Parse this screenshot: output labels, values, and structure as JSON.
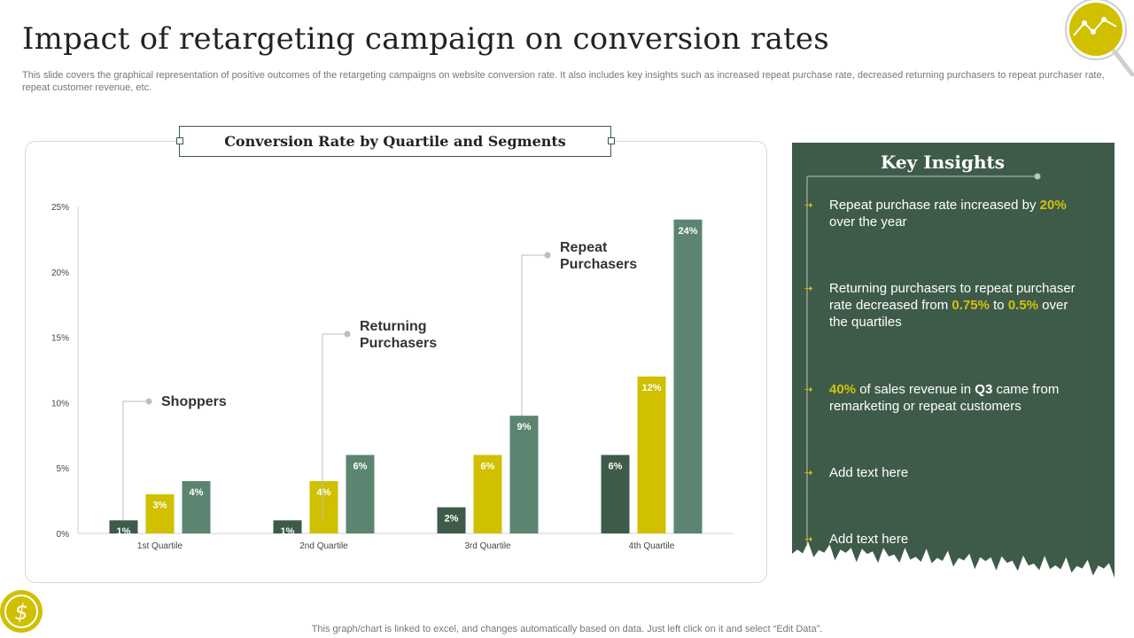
{
  "header": {
    "title": "Impact of retargeting campaign on conversion rates",
    "subtitle": "This slide covers the graphical representation of positive outcomes of the retargeting campaigns on website conversion rate. It also includes key insights such as increased repeat purchase rate, decreased returning purchasers to repeat purchaser rate, repeat customer revenue, etc."
  },
  "colors": {
    "shoppers": "#3e5b4a",
    "returning": "#d0c000",
    "repeat": "#5b8570",
    "panel": "#3e5b4a",
    "accent": "#d4c10a"
  },
  "chart_data": {
    "type": "bar",
    "title": "Conversion Rate by Quartile and Segments",
    "categories": [
      "1st Quartile",
      "2nd Quartile",
      "3rd Quartile",
      "4th Quartile"
    ],
    "series": [
      {
        "name": "Shoppers",
        "values": [
          1,
          1,
          2,
          6
        ],
        "labels": [
          "1%",
          "1%",
          "2%",
          "6%"
        ]
      },
      {
        "name": "Returning Purchasers",
        "values": [
          3,
          4,
          6,
          12
        ],
        "labels": [
          "3%",
          "4%",
          "6%",
          "12%"
        ]
      },
      {
        "name": "Repeat Purchasers",
        "values": [
          4,
          6,
          9,
          24
        ],
        "labels": [
          "4%",
          "6%",
          "9%",
          "24%"
        ]
      }
    ],
    "yticks": [
      "0%",
      "5%",
      "10%",
      "15%",
      "20%",
      "25%"
    ],
    "ylim": [
      0,
      25
    ],
    "callouts": [
      "Shoppers",
      "Returning\nPurchasers",
      "Repeat\nPurchasers"
    ]
  },
  "insights": {
    "title": "Key Insights",
    "items": [
      {
        "pre": "Repeat purchase rate increased by ",
        "hl1": "20%",
        "post": " over the year"
      },
      {
        "pre": "Returning purchasers to repeat purchaser rate decreased from ",
        "hl1": "0.75%",
        "mid": " to ",
        "hl2": "0.5%",
        "post": " over the quartiles"
      },
      {
        "hl1": "40%",
        "mid": " of sales revenue in ",
        "bold": "Q3",
        "post": " came from remarketing or repeat customers"
      },
      {
        "pre": "Add text here"
      },
      {
        "pre": "Add text here"
      }
    ]
  },
  "footer": {
    "note": "This graph/chart is linked to excel,  and changes automatically based on data. Just left click on it and select “Edit Data”."
  }
}
